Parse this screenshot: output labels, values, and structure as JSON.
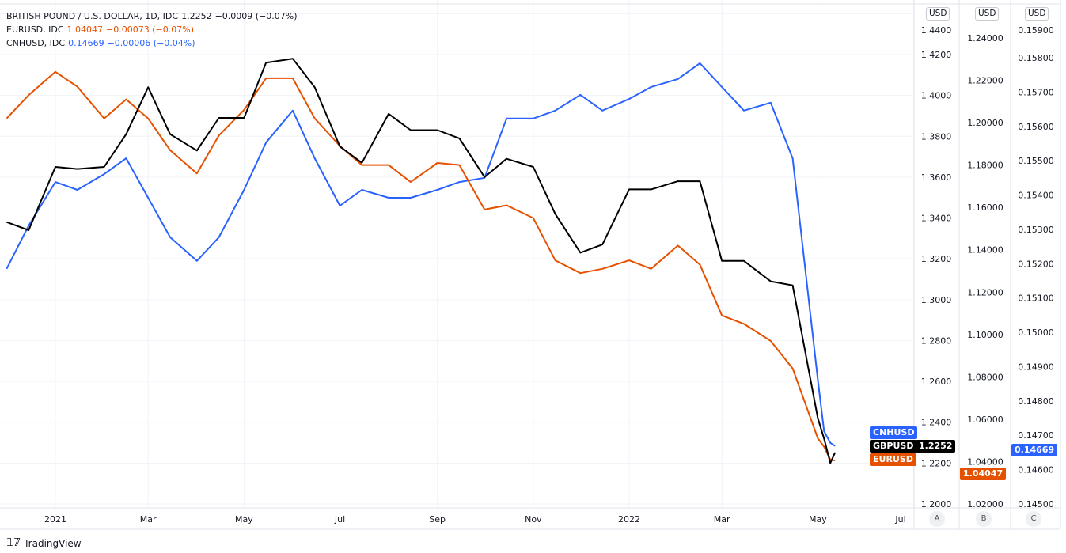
{
  "legend": [
    {
      "name": "BRITISH POUND / U.S. DOLLAR, 1D, IDC",
      "last": "1.2252",
      "change": "−0.0009 (−0.07%)",
      "color": "#131722"
    },
    {
      "name": "EURUSD, IDC",
      "last": "1.04047",
      "change": "−0.00073 (−0.07%)",
      "color": "#e65100"
    },
    {
      "name": "CNHUSD, IDC",
      "last": "0.14669",
      "change": "−0.00006 (−0.04%)",
      "color": "#2962ff"
    }
  ],
  "axes": {
    "currency": "USD",
    "labels": [
      "A",
      "B",
      "C"
    ]
  },
  "brand": "TradingView",
  "chart_data": {
    "type": "line",
    "grid": true,
    "x": [
      "2020-12-01",
      "2020-12-15",
      "2021-01-01",
      "2021-01-15",
      "2021-02-01",
      "2021-02-15",
      "2021-03-01",
      "2021-03-15",
      "2021-04-01",
      "2021-04-15",
      "2021-05-01",
      "2021-05-15",
      "2021-06-01",
      "2021-06-15",
      "2021-07-01",
      "2021-07-15",
      "2021-08-01",
      "2021-08-15",
      "2021-09-01",
      "2021-09-15",
      "2021-10-01",
      "2021-10-15",
      "2021-11-01",
      "2021-11-15",
      "2021-12-01",
      "2021-12-15",
      "2022-01-01",
      "2022-01-15",
      "2022-02-01",
      "2022-02-15",
      "2022-03-01",
      "2022-03-15",
      "2022-04-01",
      "2022-04-15",
      "2022-05-01",
      "2022-05-05",
      "2022-05-09",
      "2022-05-12"
    ],
    "xlim": [
      "2020-11-30",
      "2022-07-20"
    ],
    "x_ticks": [
      {
        "label": "2021",
        "date": "2021-01-01"
      },
      {
        "label": "Mar",
        "date": "2021-03-01"
      },
      {
        "label": "May",
        "date": "2021-05-01"
      },
      {
        "label": "Jul",
        "date": "2021-07-01"
      },
      {
        "label": "Sep",
        "date": "2021-09-01"
      },
      {
        "label": "Nov",
        "date": "2021-11-01"
      },
      {
        "label": "2022",
        "date": "2022-01-01"
      },
      {
        "label": "Mar",
        "date": "2022-03-01"
      },
      {
        "label": "May",
        "date": "2022-05-01"
      },
      {
        "label": "Jul",
        "date": "2022-07-01"
      }
    ],
    "series": [
      {
        "name": "GBPUSD",
        "axis": "A",
        "color": "#000000",
        "last": "1.2252",
        "values": [
          1.338,
          1.334,
          1.365,
          1.364,
          1.365,
          1.381,
          1.404,
          1.381,
          1.373,
          1.389,
          1.389,
          1.416,
          1.418,
          1.404,
          1.375,
          1.367,
          1.391,
          1.383,
          1.383,
          1.379,
          1.36,
          1.369,
          1.365,
          1.342,
          1.323,
          1.327,
          1.354,
          1.354,
          1.358,
          1.358,
          1.319,
          1.319,
          1.309,
          1.307,
          1.242,
          1.232,
          1.22,
          1.2252
        ]
      },
      {
        "name": "EURUSD",
        "axis": "B",
        "color": "#e65100",
        "last": "1.04047",
        "values": [
          1.202,
          1.213,
          1.224,
          1.217,
          1.202,
          1.211,
          1.202,
          1.187,
          1.176,
          1.194,
          1.206,
          1.221,
          1.221,
          1.202,
          1.189,
          1.18,
          1.18,
          1.172,
          1.181,
          1.18,
          1.159,
          1.161,
          1.155,
          1.135,
          1.129,
          1.131,
          1.135,
          1.131,
          1.142,
          1.133,
          1.109,
          1.105,
          1.097,
          1.084,
          1.051,
          1.047,
          1.041,
          1.04047
        ]
      },
      {
        "name": "CNHUSD",
        "axis": "C",
        "color": "#2962ff",
        "last": "0.14669",
        "values": [
          0.15185,
          0.15311,
          0.15438,
          0.15415,
          0.15461,
          0.15507,
          0.15392,
          0.15277,
          0.15208,
          0.15277,
          0.15415,
          0.15553,
          0.15646,
          0.15507,
          0.15369,
          0.15415,
          0.15392,
          0.15392,
          0.15415,
          0.15438,
          0.1545,
          0.15623,
          0.15623,
          0.15646,
          0.15692,
          0.15646,
          0.1568,
          0.15715,
          0.15738,
          0.15784,
          0.15715,
          0.15646,
          0.15669,
          0.15507,
          0.14862,
          0.14712,
          0.14678,
          0.14669
        ]
      }
    ],
    "y_axes": {
      "A": {
        "ylim": [
          1.2,
          1.42
        ],
        "ticks": [
          "1.4400",
          "1.4200",
          "1.4000",
          "1.3800",
          "1.3600",
          "1.3400",
          "1.3200",
          "1.3000",
          "1.2800",
          "1.2600",
          "1.2400",
          "1.2200",
          "1.2000"
        ]
      },
      "B": {
        "ylim": [
          1.02,
          1.24
        ],
        "ticks": [
          "1.24000",
          "1.22000",
          "1.20000",
          "1.18000",
          "1.16000",
          "1.14000",
          "1.12000",
          "1.10000",
          "1.08000",
          "1.06000",
          "1.04000",
          "1.02000"
        ]
      },
      "C": {
        "ylim": [
          0.145,
          0.158
        ],
        "ticks": [
          "0.15900",
          "0.15800",
          "0.15700",
          "0.15600",
          "0.15500",
          "0.15400",
          "0.15300",
          "0.15200",
          "0.15100",
          "0.15000",
          "0.14900",
          "0.14800",
          "0.14700",
          "0.14600",
          "0.14500"
        ]
      }
    }
  }
}
